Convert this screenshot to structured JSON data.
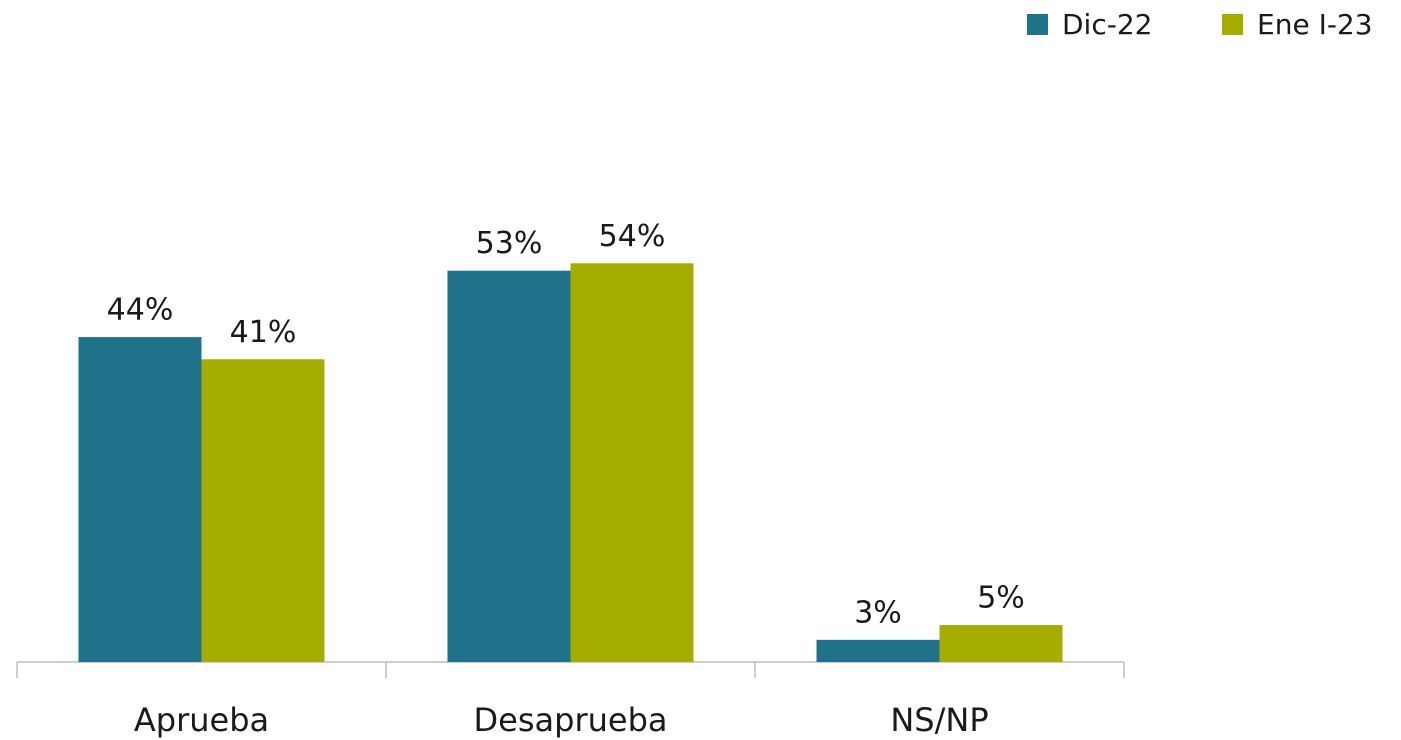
{
  "chart_data": {
    "type": "bar",
    "categories": [
      "Aprueba",
      "Desaprueba",
      "NS/NP"
    ],
    "series": [
      {
        "name": "Dic-22",
        "color": "#1f7289",
        "values": [
          44,
          53,
          3
        ],
        "value_labels": [
          "44%",
          "53%",
          "3%"
        ]
      },
      {
        "name": "Ene I-23",
        "color": "#a5ae00",
        "values": [
          41,
          54,
          5
        ],
        "value_labels": [
          "41%",
          "54%",
          "5%"
        ]
      }
    ],
    "ylim": [
      0,
      60
    ],
    "legend": "top-right"
  }
}
